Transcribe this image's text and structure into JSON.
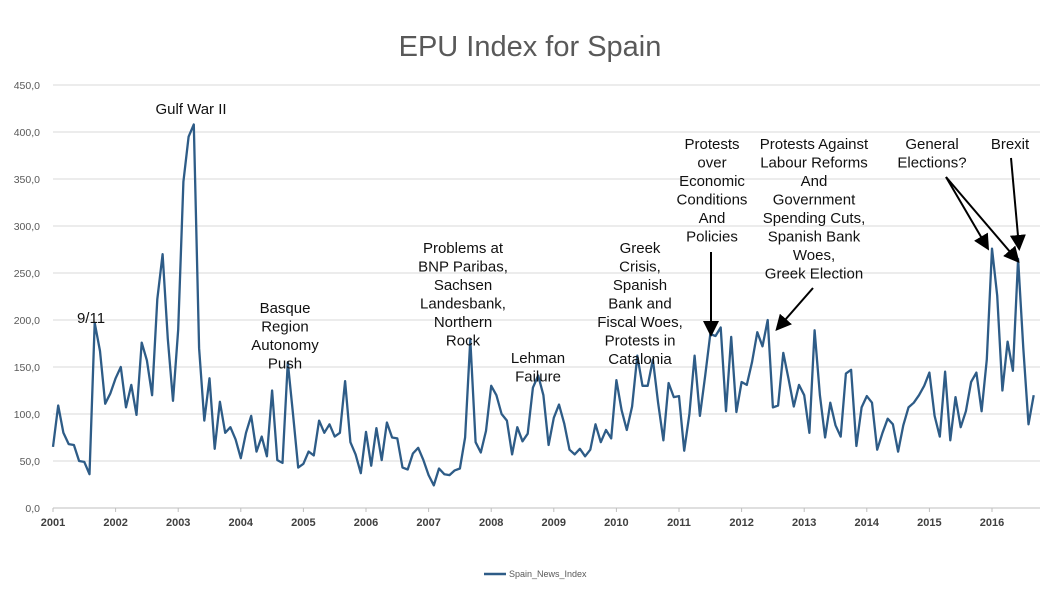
{
  "chart_data": {
    "type": "line",
    "title": "EPU Index for Spain",
    "xlabel": "",
    "ylabel": "",
    "ylim": [
      0,
      450
    ],
    "yticks": [
      "0,0",
      "50,0",
      "100,0",
      "150,0",
      "200,0",
      "250,0",
      "300,0",
      "350,0",
      "400,0",
      "450,0"
    ],
    "xticks": [
      "2001",
      "2002",
      "2003",
      "2004",
      "2005",
      "2006",
      "2007",
      "2008",
      "2009",
      "2010",
      "2011",
      "2012",
      "2013",
      "2014",
      "2015",
      "2016"
    ],
    "x_start_year": 2001,
    "frequency": "monthly",
    "grid": "horizontal",
    "legend_position": "bottom",
    "series": [
      {
        "name": "Spain_News_Index",
        "color": "#2E5C87",
        "values": [
          65,
          109,
          80,
          68,
          67,
          50,
          49,
          36,
          197,
          167,
          111,
          122,
          138,
          150,
          107,
          131,
          99,
          176,
          157,
          120,
          222,
          270,
          180,
          114,
          190,
          347,
          395,
          408,
          170,
          93,
          138,
          63,
          113,
          80,
          86,
          73,
          53,
          80,
          98,
          60,
          76,
          55,
          125,
          51,
          48,
          155,
          100,
          43,
          47,
          60,
          56,
          93,
          80,
          89,
          76,
          80,
          135,
          70,
          57,
          37,
          81,
          45,
          85,
          51,
          91,
          75,
          74,
          43,
          41,
          58,
          64,
          51,
          35,
          24,
          42,
          36,
          35,
          40,
          42,
          75,
          179,
          70,
          59,
          82,
          130,
          120,
          100,
          93,
          57,
          86,
          71,
          79,
          128,
          141,
          120,
          67,
          96,
          110,
          90,
          62,
          57,
          63,
          55,
          62,
          89,
          70,
          83,
          74,
          136,
          104,
          83,
          108,
          162,
          130,
          130,
          158,
          112,
          72,
          133,
          118,
          119,
          61,
          100,
          162,
          98,
          140,
          185,
          183,
          192,
          103,
          182,
          102,
          134,
          131,
          155,
          187,
          172,
          200,
          107,
          109,
          165,
          137,
          108,
          131,
          120,
          80,
          189,
          120,
          75,
          112,
          88,
          76,
          143,
          147,
          66,
          107,
          119,
          112,
          62,
          80,
          95,
          89,
          60,
          88,
          107,
          112,
          120,
          130,
          144,
          98,
          76,
          145,
          72,
          118,
          86,
          103,
          134,
          144,
          103,
          158,
          276,
          226,
          125,
          177,
          146,
          265,
          170,
          89,
          120
        ]
      }
    ],
    "annotations": [
      {
        "id": "9-11",
        "lines": [
          "9/11"
        ]
      },
      {
        "id": "gulf-war",
        "lines": [
          "Gulf War II"
        ]
      },
      {
        "id": "basque",
        "lines": [
          "Basque",
          "Region",
          "Autonomy",
          "Push"
        ]
      },
      {
        "id": "bnp",
        "lines": [
          "Problems at",
          "BNP Paribas,",
          "Sachsen",
          "Landesbank,",
          "Northern",
          "Rock"
        ]
      },
      {
        "id": "lehman",
        "lines": [
          "Lehman",
          "Failure"
        ]
      },
      {
        "id": "greek-crisis",
        "lines": [
          "Greek",
          "Crisis,",
          "Spanish",
          "Bank and",
          "Fiscal Woes,",
          "Protests in",
          "Catalonia"
        ]
      },
      {
        "id": "protests-over",
        "lines": [
          "Protests",
          "over",
          "Economic",
          "Conditions",
          "And",
          "Policies"
        ]
      },
      {
        "id": "protests-against",
        "lines": [
          "Protests Against",
          "Labour Reforms",
          "And",
          "Government",
          "Spending Cuts,",
          "Spanish Bank",
          "Woes,",
          "Greek Election"
        ]
      },
      {
        "id": "general-elections",
        "lines": [
          "General",
          "Elections?"
        ]
      },
      {
        "id": "brexit",
        "lines": [
          "Brexit"
        ]
      }
    ]
  }
}
